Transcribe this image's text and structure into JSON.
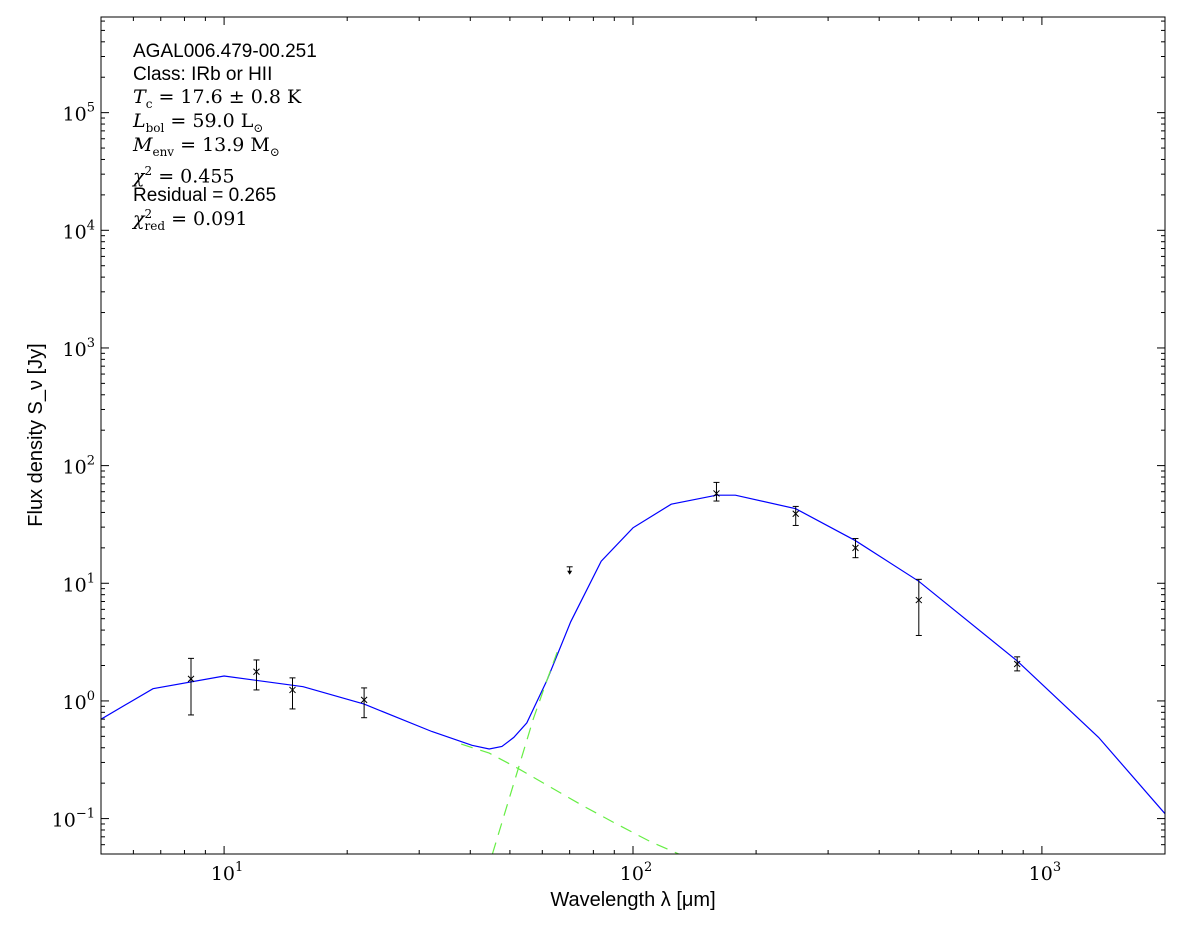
{
  "chart_data": {
    "type": "line",
    "title": "",
    "xlabel": "Wavelength λ [μm]",
    "ylabel": "Flux density S_ν [Jy]",
    "xscale": "log",
    "yscale": "log",
    "xlim": [
      5,
      2000
    ],
    "ylim": [
      0.05,
      650000
    ],
    "grid": false,
    "x_tick_labels": [
      {
        "value": 10,
        "base": "10",
        "exp": "1"
      },
      {
        "value": 100,
        "base": "10",
        "exp": "2"
      },
      {
        "value": 1000,
        "base": "10",
        "exp": "3"
      }
    ],
    "y_tick_labels": [
      {
        "value": 0.1,
        "base": "10",
        "exp": "−1"
      },
      {
        "value": 1,
        "base": "10",
        "exp": "0"
      },
      {
        "value": 10,
        "base": "10",
        "exp": "1"
      },
      {
        "value": 100,
        "base": "10",
        "exp": "2"
      },
      {
        "value": 1000,
        "base": "10",
        "exp": "3"
      },
      {
        "value": 10000,
        "base": "10",
        "exp": "4"
      },
      {
        "value": 100000,
        "base": "10",
        "exp": "5"
      }
    ],
    "colors": {
      "model_total": "#0000ff",
      "model_components": "#66ee44",
      "data": "#000000"
    },
    "measurements": [
      {
        "x": 8.3,
        "y": 1.54,
        "err_low": 0.76,
        "err_high": 2.3
      },
      {
        "x": 12,
        "y": 1.77,
        "err_low": 1.24,
        "err_high": 2.23
      },
      {
        "x": 14.7,
        "y": 1.24,
        "err_low": 0.855,
        "err_high": 1.57
      },
      {
        "x": 22,
        "y": 1.02,
        "err_low": 0.72,
        "err_high": 1.29
      },
      {
        "x": 160,
        "y": 58,
        "err_low": 50,
        "err_high": 72
      },
      {
        "x": 250,
        "y": 39,
        "err_low": 31,
        "err_high": 45
      },
      {
        "x": 350,
        "y": 20,
        "err_low": 16.5,
        "err_high": 24
      },
      {
        "x": 500,
        "y": 7.2,
        "err_low": 3.6,
        "err_high": 10.8
      },
      {
        "x": 870,
        "y": 2.06,
        "err_low": 1.8,
        "err_high": 2.37
      }
    ],
    "upper_limits": [
      {
        "x": 70,
        "y": 13.8
      }
    ],
    "series": [
      {
        "style": "solid",
        "color": "#0000ff",
        "x": [
          5,
          6.7,
          10,
          15.6,
          22,
          32.2,
          40.4,
          44.5,
          47.8,
          51.1,
          55,
          61.5,
          70.4,
          83.6,
          100,
          124,
          160,
          178,
          250,
          350,
          500,
          870,
          1376,
          2000
        ],
        "y": [
          0.7,
          1.27,
          1.63,
          1.32,
          0.94,
          0.55,
          0.42,
          0.39,
          0.41,
          0.49,
          0.65,
          1.48,
          4.7,
          15.4,
          29.6,
          47,
          56,
          56,
          43,
          23,
          10.4,
          2.19,
          0.49,
          0.11
        ]
      },
      {
        "style": "dashed",
        "color": "#66ee44",
        "x": [
          38,
          44.5,
          52,
          62,
          75,
          90,
          110,
          131
        ],
        "y": [
          0.43,
          0.36,
          0.27,
          0.19,
          0.13,
          0.092,
          0.064,
          0.049
        ]
      },
      {
        "style": "dashed",
        "color": "#66ee44",
        "x": [
          45.3,
          52.3,
          57,
          61.5,
          66
        ],
        "y": [
          0.05,
          0.26,
          0.7,
          1.48,
          2.9
        ]
      }
    ],
    "annotations": {
      "source": "AGAL006.479-00.251",
      "class": "Class: IRb or HII",
      "tc": {
        "sym": "T",
        "sub": "c",
        "rest": " = 17.6 ± 0.8 K"
      },
      "lbol": {
        "sym": "L",
        "sub": "bol",
        "rest": " = 59.0 L",
        "tail": "⊙"
      },
      "menv": {
        "sym": "M",
        "sub": "env",
        "rest": " = 13.9 M",
        "tail": "⊙"
      },
      "chi2": {
        "sym": "χ",
        "sup": "2",
        "rest": " = 0.455"
      },
      "residual": "Residual = 0.265",
      "chi2red": {
        "sym": "χ",
        "sup": "2",
        "sub": "red",
        "rest": " = 0.091"
      }
    }
  }
}
